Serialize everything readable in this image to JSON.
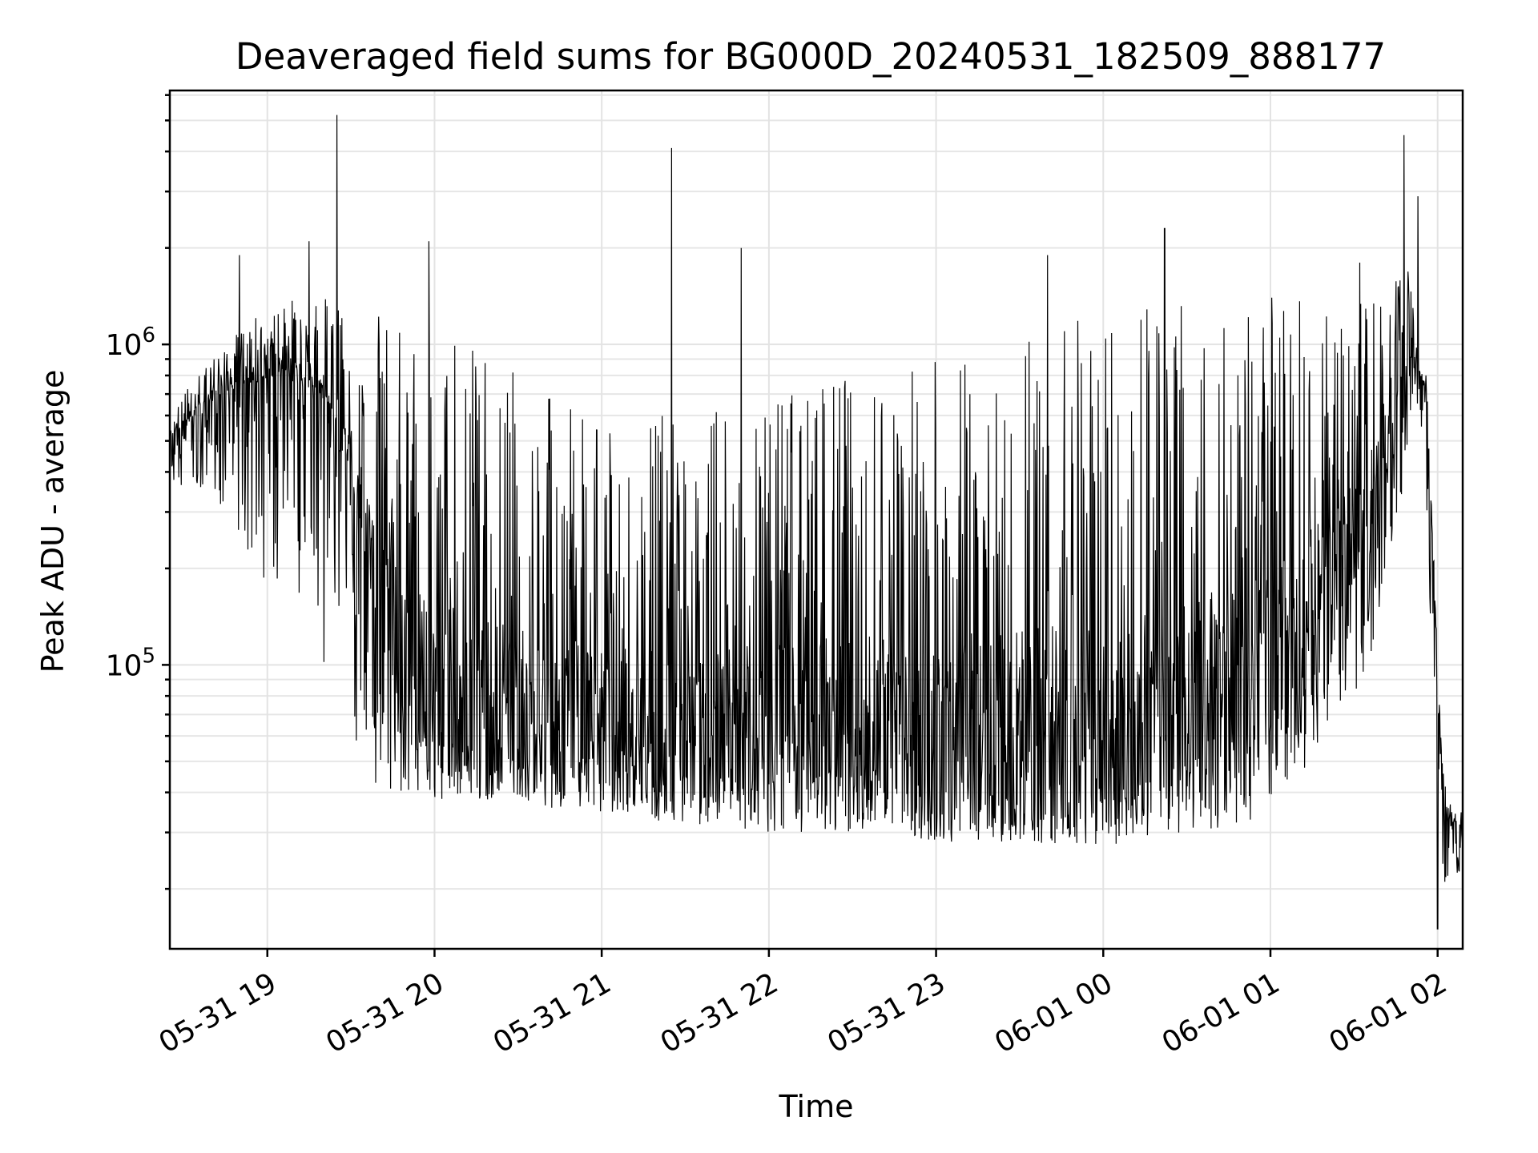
{
  "chart_data": {
    "type": "line",
    "title": "Deaveraged field sums for BG000D_20240531_182509_888177",
    "xlabel": "Time",
    "ylabel": "Peak ADU - average",
    "x_ticks": [
      "05-31 19",
      "05-31 20",
      "05-31 21",
      "05-31 22",
      "05-31 23",
      "06-01 00",
      "06-01 01",
      "06-01 02"
    ],
    "xlim": [
      "2024-05-31 18:25",
      "2024-06-01 02:09"
    ],
    "y_scale": "log",
    "ylim": [
      13000,
      6200000
    ],
    "y_ticks": [
      {
        "base": "10",
        "exp": "5",
        "value": 100000
      },
      {
        "base": "10",
        "exp": "6",
        "value": 1000000
      }
    ],
    "grid": true,
    "line_color": "#000000",
    "series": [
      {
        "x": [
          "2024-05-31 18:25",
          "2024-05-31 18:30",
          "2024-05-31 18:35",
          "2024-05-31 18:40",
          "2024-05-31 18:45",
          "2024-05-31 18:50",
          "2024-05-31 18:55",
          "2024-05-31 19:00",
          "2024-05-31 19:05",
          "2024-05-31 19:10",
          "2024-05-31 19:15",
          "2024-05-31 19:20",
          "2024-05-31 19:25",
          "2024-05-31 19:30",
          "2024-05-31 19:35",
          "2024-05-31 19:40",
          "2024-05-31 19:45",
          "2024-05-31 19:50",
          "2024-05-31 19:55",
          "2024-05-31 20:00",
          "2024-05-31 20:10",
          "2024-05-31 20:20",
          "2024-05-31 20:30",
          "2024-05-31 20:40",
          "2024-05-31 20:50",
          "2024-05-31 21:00",
          "2024-05-31 21:15",
          "2024-05-31 21:30",
          "2024-05-31 21:45",
          "2024-05-31 22:00",
          "2024-05-31 22:15",
          "2024-05-31 22:30",
          "2024-05-31 22:45",
          "2024-05-31 23:00",
          "2024-05-31 23:15",
          "2024-05-31 23:30",
          "2024-05-31 23:45",
          "2024-06-01 00:00",
          "2024-06-01 00:10",
          "2024-06-01 00:20",
          "2024-06-01 00:30",
          "2024-06-01 00:40",
          "2024-06-01 00:50",
          "2024-06-01 01:00",
          "2024-06-01 01:05",
          "2024-06-01 01:10",
          "2024-06-01 01:15",
          "2024-06-01 01:20",
          "2024-06-01 01:25",
          "2024-06-01 01:30",
          "2024-06-01 01:35",
          "2024-06-01 01:40",
          "2024-06-01 01:45",
          "2024-06-01 01:50",
          "2024-06-01 01:53",
          "2024-06-01 01:56",
          "2024-06-01 01:59",
          "2024-06-01 02:02",
          "2024-06-01 02:05",
          "2024-06-01 02:09"
        ],
        "baseline": [
          520000,
          540000,
          600000,
          650000,
          700000,
          720000,
          750000,
          780000,
          800000,
          750000,
          700000,
          600000,
          500000,
          400000,
          200000,
          120000,
          90000,
          70000,
          60000,
          60000,
          55000,
          52000,
          52000,
          50000,
          48000,
          47000,
          46000,
          46000,
          45000,
          45000,
          45000,
          45000,
          44000,
          43000,
          42000,
          42000,
          41000,
          41000,
          42000,
          45000,
          50000,
          55000,
          60000,
          70000,
          80000,
          90000,
          110000,
          130000,
          150000,
          180000,
          250000,
          350000,
          500000,
          800000,
          850000,
          700000,
          150000,
          40000,
          30000,
          32000
        ],
        "upper": [
          600000,
          700000,
          800000,
          900000,
          1000000,
          1100000,
          1200000,
          1300000,
          1350000,
          1400000,
          1400000,
          1400000,
          1350000,
          1300000,
          1300000,
          1250000,
          1200000,
          1150000,
          1100000,
          1050000,
          1000000,
          900000,
          800000,
          700000,
          650000,
          600000,
          600000,
          600000,
          650000,
          700000,
          750000,
          800000,
          850000,
          900000,
          1000000,
          1100000,
          1200000,
          1300000,
          1350000,
          1400000,
          1400000,
          1400000,
          1400000,
          1400000,
          1400000,
          1400000,
          1400000,
          1400000,
          1400000,
          1400000,
          1400000,
          1500000,
          1600000,
          1800000,
          900000,
          800000,
          200000,
          50000,
          38000,
          36000
        ],
        "lower": [
          350000,
          340000,
          330000,
          320000,
          300000,
          260000,
          200000,
          180000,
          150000,
          120000,
          100000,
          80000,
          70000,
          60000,
          45000,
          42000,
          40000,
          40000,
          39000,
          38000,
          38000,
          38000,
          38000,
          36000,
          35000,
          34000,
          33000,
          32000,
          31000,
          30000,
          30000,
          30000,
          29000,
          28000,
          28000,
          28000,
          27000,
          27000,
          28000,
          29000,
          30000,
          30000,
          32000,
          35000,
          40000,
          45000,
          50000,
          60000,
          70000,
          80000,
          100000,
          150000,
          250000,
          500000,
          600000,
          300000,
          60000,
          20000,
          18000,
          25000
        ],
        "spikes": [
          {
            "t": "2024-05-31 19:25",
            "v": 5200000
          },
          {
            "t": "2024-05-31 19:15",
            "v": 2100000
          },
          {
            "t": "2024-05-31 18:50",
            "v": 1900000
          },
          {
            "t": "2024-05-31 19:58",
            "v": 2100000
          },
          {
            "t": "2024-05-31 21:25",
            "v": 4100000
          },
          {
            "t": "2024-05-31 21:50",
            "v": 2000000
          },
          {
            "t": "2024-05-31 23:40",
            "v": 1900000
          },
          {
            "t": "2024-06-01 00:22",
            "v": 2300000
          },
          {
            "t": "2024-06-01 01:32",
            "v": 1800000
          },
          {
            "t": "2024-06-01 01:48",
            "v": 4500000
          },
          {
            "t": "2024-06-01 01:53",
            "v": 2900000
          },
          {
            "t": "2024-06-01 02:00",
            "v": 15000
          }
        ]
      }
    ]
  }
}
